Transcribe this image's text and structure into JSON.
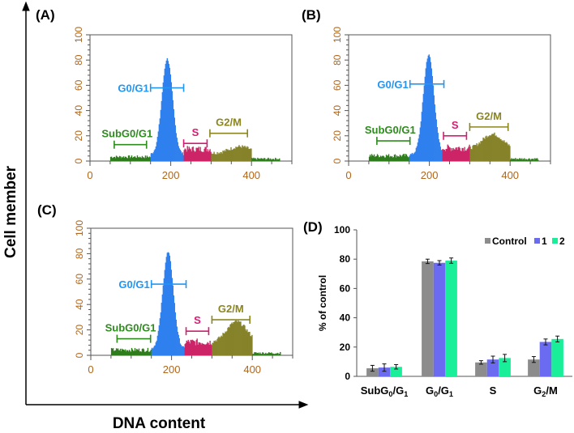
{
  "figure": {
    "ylabel": "Cell member",
    "xlabel": "DNA content"
  },
  "chart_data": [
    {
      "panel": "(A)",
      "type": "area",
      "xlim": [
        0,
        500
      ],
      "ylim": [
        0,
        100
      ],
      "xticks": [
        0,
        200,
        400
      ],
      "yticks": [
        0,
        20,
        40,
        60,
        80,
        100
      ],
      "histogram": {
        "g1_center": 190,
        "g1_height": 76,
        "subg_level": 3.5,
        "s_level": 10,
        "g2_center": 370,
        "g2_height": 10,
        "g2_level": 8
      },
      "gates": [
        {
          "label": "SubG0/G1",
          "range": [
            60,
            140
          ],
          "y": 13,
          "color": "#2e8b1e"
        },
        {
          "label": "G0/G1",
          "range": [
            150,
            232
          ],
          "y": 58,
          "color": "#2196f3"
        },
        {
          "label": "S",
          "range": [
            232,
            290
          ],
          "y": 14,
          "color": "#d81b72"
        },
        {
          "label": "G2/M",
          "range": [
            297,
            390
          ],
          "y": 22,
          "color": "#8b8520"
        }
      ]
    },
    {
      "panel": "(B)",
      "type": "area",
      "xlim": [
        0,
        500
      ],
      "ylim": [
        0,
        100
      ],
      "xticks": [
        0,
        200,
        400
      ],
      "yticks": [
        0,
        20,
        40,
        60,
        80,
        100
      ],
      "histogram": {
        "g1_center": 197,
        "g1_height": 79,
        "subg_level": 4.5,
        "s_level": 11,
        "g2_center": 355,
        "g2_height": 20,
        "g2_level": 13
      },
      "gates": [
        {
          "label": "SubG0/G1",
          "range": [
            70,
            152
          ],
          "y": 16,
          "color": "#2e8b1e"
        },
        {
          "label": "G0/G1",
          "range": [
            152,
            236
          ],
          "y": 61,
          "color": "#2196f3"
        },
        {
          "label": "S",
          "range": [
            235,
            292
          ],
          "y": 20,
          "color": "#d81b72"
        },
        {
          "label": "G2/M",
          "range": [
            300,
            395
          ],
          "y": 27,
          "color": "#8b8520"
        }
      ]
    },
    {
      "panel": "(C)",
      "type": "area",
      "xlim": [
        0,
        500
      ],
      "ylim": [
        0,
        100
      ],
      "xticks": [
        0,
        200,
        400
      ],
      "yticks": [
        0,
        20,
        40,
        60,
        80,
        100
      ],
      "histogram": {
        "g1_center": 190,
        "g1_height": 76,
        "subg_level": 4.5,
        "s_level": 11,
        "g2_center": 360,
        "g2_height": 25,
        "g2_level": 14
      },
      "gates": [
        {
          "label": "SubG0/G1",
          "range": [
            65,
            148
          ],
          "y": 13,
          "color": "#2e8b1e"
        },
        {
          "label": "G0/G1",
          "range": [
            150,
            236
          ],
          "y": 56,
          "color": "#2196f3"
        },
        {
          "label": "S",
          "range": [
            236,
            292
          ],
          "y": 19,
          "color": "#d81b72"
        },
        {
          "label": "G2/M",
          "range": [
            300,
            394
          ],
          "y": 28,
          "color": "#8b8520"
        }
      ]
    },
    {
      "panel": "(D)",
      "type": "bar",
      "categories": [
        "SubG0/G1",
        "G0/G1",
        "S",
        "G2/M"
      ],
      "ylabel": "% of control",
      "ylim": [
        0,
        100
      ],
      "yticks": [
        0,
        20,
        40,
        60,
        80,
        100
      ],
      "legend_position": "top-right",
      "series": [
        {
          "name": "Control",
          "color": "#8c8c8c",
          "values": [
            5.5,
            78.5,
            9.5,
            11.5
          ],
          "errors": [
            2,
            1.5,
            1.2,
            2
          ]
        },
        {
          "name": "1",
          "color": "#6b6bf2",
          "values": [
            6,
            77.5,
            11.5,
            23.5
          ],
          "errors": [
            2.5,
            1.5,
            2.3,
            2
          ]
        },
        {
          "name": "2",
          "color": "#19ee98",
          "values": [
            6.5,
            79,
            12.5,
            25.5
          ],
          "errors": [
            1.5,
            1.8,
            2.5,
            2
          ]
        }
      ]
    }
  ],
  "colors": {
    "subg": "#2f7d1c",
    "g1": "#2f80ee",
    "s": "#cc2467",
    "g2": "#86832a",
    "tick_label": "#b0661c"
  }
}
